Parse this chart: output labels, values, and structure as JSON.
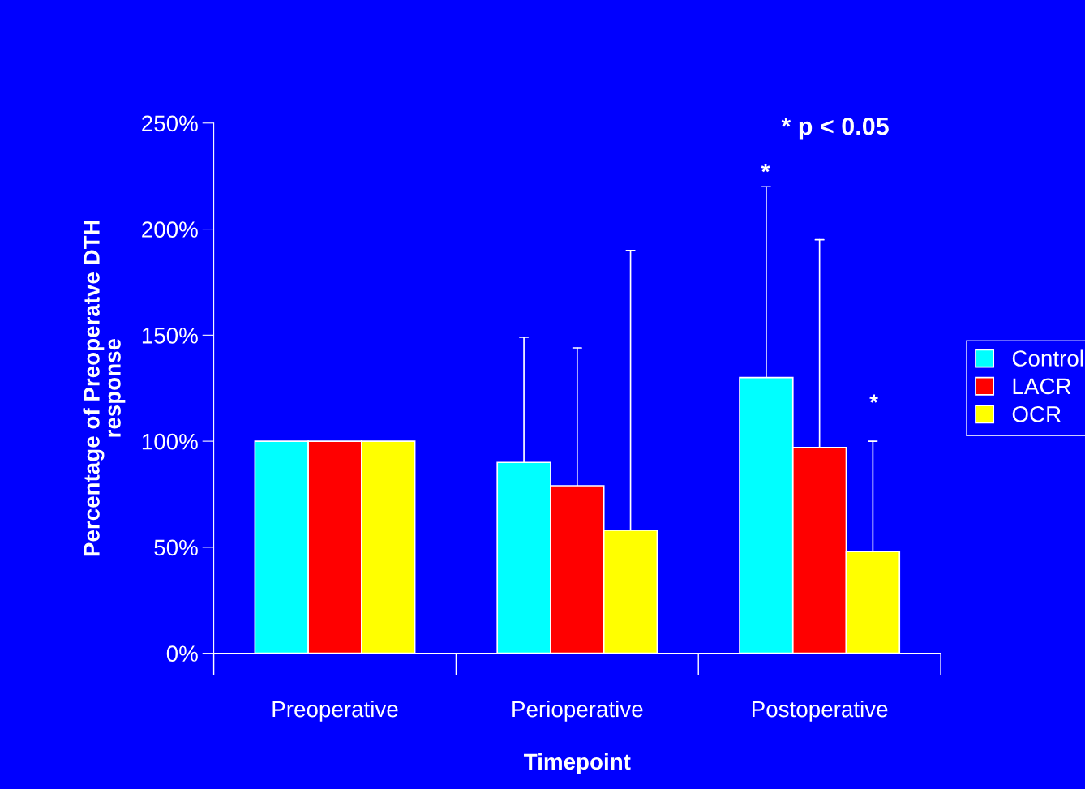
{
  "chart_data": {
    "type": "bar",
    "xlabel": "Timepoint",
    "ylabel": "Percentage of Preoperatve DTH\nresponse",
    "categories": [
      "Preoperative",
      "Perioperative",
      "Postoperative"
    ],
    "series": [
      {
        "name": "Control",
        "color": "#00ffff",
        "values": [
          100,
          90,
          130
        ],
        "errors": [
          null,
          [
            90,
            149
          ],
          [
            130,
            220
          ]
        ]
      },
      {
        "name": "LACR",
        "color": "#ff0000",
        "values": [
          100,
          79,
          97
        ],
        "errors": [
          null,
          [
            79,
            144
          ],
          [
            97,
            195
          ]
        ]
      },
      {
        "name": "OCR",
        "color": "#ffff00",
        "values": [
          100,
          58,
          48
        ],
        "errors": [
          null,
          [
            58,
            190
          ],
          [
            48,
            100
          ]
        ]
      }
    ],
    "ylim": [
      0,
      250
    ],
    "yticks": [
      {
        "value": 0,
        "label": "0%"
      },
      {
        "value": 50,
        "label": "50%"
      },
      {
        "value": 100,
        "label": "100%"
      },
      {
        "value": 150,
        "label": "150%"
      },
      {
        "value": 200,
        "label": "200%"
      },
      {
        "value": 250,
        "label": "250%"
      }
    ],
    "annotations": [
      "* p < 0.05",
      "*",
      "*"
    ],
    "grid": false,
    "legend": "right"
  }
}
